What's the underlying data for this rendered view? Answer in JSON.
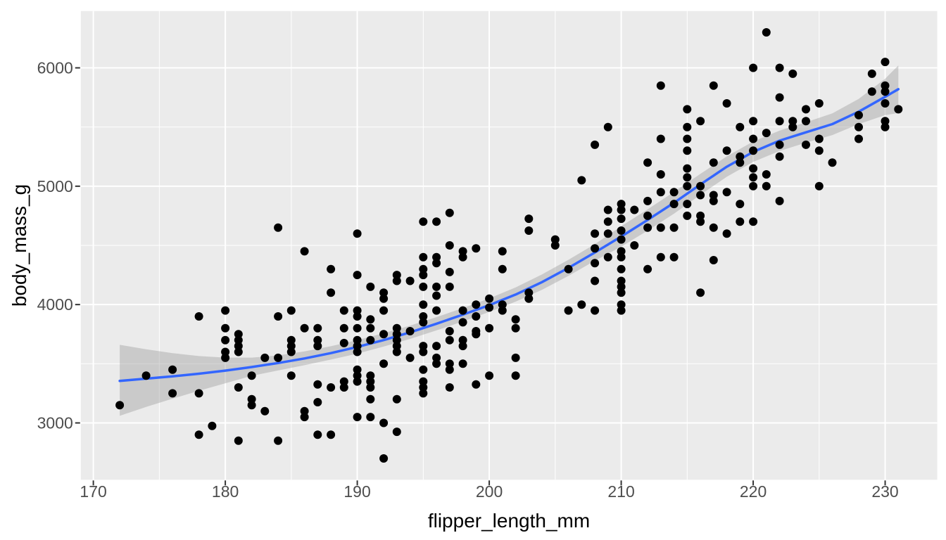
{
  "figure": {
    "kind": "ggplot2-style scatter plot with loess smooth",
    "background": "#FFFFFF"
  },
  "chart_data": {
    "type": "scatter",
    "title": "",
    "xlabel": "flipper_length_mm",
    "ylabel": "body_mass_g",
    "x_domain": [
      169.05,
      233.95
    ],
    "y_domain": [
      2520,
      6480
    ],
    "x_ticks": [
      170,
      180,
      190,
      200,
      210,
      220,
      230
    ],
    "x_minor_ticks": [
      175,
      185,
      195,
      205,
      215,
      225
    ],
    "y_ticks": [
      3000,
      4000,
      5000,
      6000
    ],
    "y_minor_ticks": [
      2500,
      3500,
      4500,
      5500,
      6500
    ],
    "grid": true,
    "legend": "none",
    "colors": {
      "panel_bg": "#EBEBEB",
      "grid": "#FFFFFF",
      "point": "#000000",
      "smooth_line": "#3366FF",
      "ci_fill": "#999999",
      "ci_opacity": 0.4,
      "tick_text": "#4D4D4D",
      "axis_title": "#000000",
      "tick_mark": "#333333"
    },
    "points": [
      [
        172,
        3150
      ],
      [
        174,
        3400
      ],
      [
        176,
        3450
      ],
      [
        176,
        3250
      ],
      [
        178,
        3900
      ],
      [
        178,
        3250
      ],
      [
        178,
        2900
      ],
      [
        179,
        2975
      ],
      [
        180,
        3950
      ],
      [
        180,
        3800
      ],
      [
        180,
        3700
      ],
      [
        180,
        3600
      ],
      [
        180,
        3550
      ],
      [
        181,
        3750
      ],
      [
        181,
        3700
      ],
      [
        181,
        3650
      ],
      [
        181,
        3600
      ],
      [
        181,
        3300
      ],
      [
        181,
        2850
      ],
      [
        182,
        3400
      ],
      [
        182,
        3200
      ],
      [
        182,
        3150
      ],
      [
        183,
        3550
      ],
      [
        183,
        3100
      ],
      [
        184,
        4650
      ],
      [
        184,
        3900
      ],
      [
        184,
        3550
      ],
      [
        184,
        2850
      ],
      [
        185,
        3950
      ],
      [
        185,
        3700
      ],
      [
        185,
        3650
      ],
      [
        185,
        3600
      ],
      [
        185,
        3400
      ],
      [
        186,
        4450
      ],
      [
        186,
        3800
      ],
      [
        186,
        3100
      ],
      [
        186,
        3050
      ],
      [
        187,
        3800
      ],
      [
        187,
        3700
      ],
      [
        187,
        3650
      ],
      [
        187,
        3325
      ],
      [
        187,
        3175
      ],
      [
        187,
        2900
      ],
      [
        188,
        4300
      ],
      [
        188,
        4100
      ],
      [
        188,
        3300
      ],
      [
        188,
        2900
      ],
      [
        189,
        3950
      ],
      [
        189,
        3800
      ],
      [
        189,
        3675
      ],
      [
        189,
        3350
      ],
      [
        189,
        3300
      ],
      [
        190,
        4600
      ],
      [
        190,
        4250
      ],
      [
        190,
        3950
      ],
      [
        190,
        3900
      ],
      [
        190,
        3800
      ],
      [
        190,
        3700
      ],
      [
        190,
        3650
      ],
      [
        190,
        3600
      ],
      [
        190,
        3450
      ],
      [
        190,
        3400
      ],
      [
        190,
        3350
      ],
      [
        190,
        3050
      ],
      [
        191,
        4150
      ],
      [
        191,
        3875
      ],
      [
        191,
        3800
      ],
      [
        191,
        3700
      ],
      [
        191,
        3400
      ],
      [
        191,
        3350
      ],
      [
        191,
        3300
      ],
      [
        191,
        3200
      ],
      [
        191,
        3050
      ],
      [
        192,
        4100
      ],
      [
        192,
        4050
      ],
      [
        192,
        3950
      ],
      [
        192,
        3750
      ],
      [
        192,
        3500
      ],
      [
        192,
        3000
      ],
      [
        192,
        2700
      ],
      [
        193,
        4250
      ],
      [
        193,
        4200
      ],
      [
        193,
        3800
      ],
      [
        193,
        3750
      ],
      [
        193,
        3700
      ],
      [
        193,
        3650
      ],
      [
        193,
        3600
      ],
      [
        193,
        3200
      ],
      [
        193,
        2925
      ],
      [
        194,
        4200
      ],
      [
        194,
        3775
      ],
      [
        194,
        3550
      ],
      [
        195,
        4700
      ],
      [
        195,
        4400
      ],
      [
        195,
        4300
      ],
      [
        195,
        4250
      ],
      [
        195,
        4150
      ],
      [
        195,
        4000
      ],
      [
        195,
        3900
      ],
      [
        195,
        3850
      ],
      [
        195,
        3650
      ],
      [
        195,
        3600
      ],
      [
        195,
        3450
      ],
      [
        195,
        3350
      ],
      [
        195,
        3300
      ],
      [
        195,
        3250
      ],
      [
        196,
        4700
      ],
      [
        196,
        4400
      ],
      [
        196,
        4350
      ],
      [
        196,
        4150
      ],
      [
        196,
        4075
      ],
      [
        196,
        3950
      ],
      [
        196,
        3650
      ],
      [
        196,
        3550
      ],
      [
        196,
        3500
      ],
      [
        197,
        4775
      ],
      [
        197,
        4500
      ],
      [
        197,
        4275
      ],
      [
        197,
        4150
      ],
      [
        197,
        3775
      ],
      [
        197,
        3700
      ],
      [
        197,
        3500
      ],
      [
        197,
        3450
      ],
      [
        197,
        3300
      ],
      [
        198,
        4450
      ],
      [
        198,
        4400
      ],
      [
        198,
        3950
      ],
      [
        198,
        3850
      ],
      [
        198,
        3700
      ],
      [
        198,
        3650
      ],
      [
        198,
        3500
      ],
      [
        199,
        4475
      ],
      [
        199,
        4000
      ],
      [
        199,
        3900
      ],
      [
        199,
        3775
      ],
      [
        199,
        3750
      ],
      [
        199,
        3325
      ],
      [
        200,
        4050
      ],
      [
        200,
        3975
      ],
      [
        200,
        3800
      ],
      [
        200,
        3400
      ],
      [
        201,
        4450
      ],
      [
        201,
        4300
      ],
      [
        201,
        4000
      ],
      [
        201,
        3950
      ],
      [
        202,
        3875
      ],
      [
        202,
        3800
      ],
      [
        202,
        3550
      ],
      [
        202,
        3400
      ],
      [
        203,
        4725
      ],
      [
        203,
        4625
      ],
      [
        203,
        4100
      ],
      [
        203,
        4050
      ],
      [
        205,
        4550
      ],
      [
        205,
        4500
      ],
      [
        206,
        4300
      ],
      [
        206,
        3950
      ],
      [
        207,
        5050
      ],
      [
        207,
        4000
      ],
      [
        208,
        5350
      ],
      [
        208,
        4600
      ],
      [
        208,
        4475
      ],
      [
        208,
        4350
      ],
      [
        208,
        4200
      ],
      [
        208,
        3950
      ],
      [
        209,
        5500
      ],
      [
        209,
        4800
      ],
      [
        209,
        4700
      ],
      [
        209,
        4600
      ],
      [
        209,
        4400
      ],
      [
        210,
        4850
      ],
      [
        210,
        4800
      ],
      [
        210,
        4725
      ],
      [
        210,
        4625
      ],
      [
        210,
        4550
      ],
      [
        210,
        4450
      ],
      [
        210,
        4400
      ],
      [
        210,
        4300
      ],
      [
        210,
        4200
      ],
      [
        210,
        4150
      ],
      [
        210,
        4100
      ],
      [
        210,
        4000
      ],
      [
        210,
        3950
      ],
      [
        211,
        4800
      ],
      [
        211,
        4500
      ],
      [
        212,
        5200
      ],
      [
        212,
        4875
      ],
      [
        212,
        4750
      ],
      [
        212,
        4650
      ],
      [
        212,
        4300
      ],
      [
        213,
        5850
      ],
      [
        213,
        5400
      ],
      [
        213,
        5100
      ],
      [
        213,
        4950
      ],
      [
        213,
        4650
      ],
      [
        213,
        4400
      ],
      [
        214,
        4950
      ],
      [
        214,
        4850
      ],
      [
        214,
        4650
      ],
      [
        214,
        4400
      ],
      [
        215,
        5650
      ],
      [
        215,
        5500
      ],
      [
        215,
        5400
      ],
      [
        215,
        5300
      ],
      [
        215,
        5150
      ],
      [
        215,
        5075
      ],
      [
        215,
        5000
      ],
      [
        215,
        4850
      ],
      [
        215,
        4750
      ],
      [
        216,
        5550
      ],
      [
        216,
        5000
      ],
      [
        216,
        4925
      ],
      [
        216,
        4750
      ],
      [
        216,
        4700
      ],
      [
        216,
        4100
      ],
      [
        217,
        5850
      ],
      [
        217,
        5200
      ],
      [
        217,
        4925
      ],
      [
        217,
        4875
      ],
      [
        217,
        4650
      ],
      [
        217,
        4375
      ],
      [
        218,
        5700
      ],
      [
        218,
        5300
      ],
      [
        218,
        4950
      ],
      [
        218,
        4600
      ],
      [
        219,
        5500
      ],
      [
        219,
        5250
      ],
      [
        219,
        5200
      ],
      [
        219,
        4850
      ],
      [
        219,
        4700
      ],
      [
        220,
        6000
      ],
      [
        220,
        5550
      ],
      [
        220,
        5400
      ],
      [
        220,
        5300
      ],
      [
        220,
        5150
      ],
      [
        220,
        5075
      ],
      [
        220,
        5000
      ],
      [
        220,
        4700
      ],
      [
        221,
        6300
      ],
      [
        221,
        5450
      ],
      [
        221,
        5100
      ],
      [
        221,
        5000
      ],
      [
        222,
        6000
      ],
      [
        222,
        5750
      ],
      [
        222,
        5550
      ],
      [
        222,
        5350
      ],
      [
        222,
        5250
      ],
      [
        222,
        4875
      ],
      [
        223,
        5950
      ],
      [
        223,
        5550
      ],
      [
        223,
        5500
      ],
      [
        224,
        5650
      ],
      [
        224,
        5550
      ],
      [
        224,
        5350
      ],
      [
        225,
        5700
      ],
      [
        225,
        5400
      ],
      [
        225,
        5300
      ],
      [
        225,
        5000
      ],
      [
        226,
        5200
      ],
      [
        228,
        5600
      ],
      [
        228,
        5500
      ],
      [
        228,
        5400
      ],
      [
        229,
        5950
      ],
      [
        229,
        5800
      ],
      [
        230,
        6050
      ],
      [
        230,
        5850
      ],
      [
        230,
        5800
      ],
      [
        230,
        5700
      ],
      [
        230,
        5550
      ],
      [
        230,
        5500
      ],
      [
        231,
        5650
      ]
    ],
    "smooth": {
      "x": [
        172,
        174,
        176,
        178,
        180,
        182,
        184,
        186,
        188,
        190,
        192,
        194,
        196,
        198,
        200,
        202,
        204,
        206,
        208,
        210,
        212,
        214,
        216,
        218,
        220,
        222,
        224,
        226,
        228,
        230,
        231
      ],
      "fit": [
        3355,
        3374,
        3394,
        3416,
        3442,
        3472,
        3506,
        3545,
        3590,
        3642,
        3700,
        3765,
        3838,
        3915,
        3995,
        4085,
        4190,
        4310,
        4440,
        4575,
        4715,
        4860,
        5015,
        5165,
        5290,
        5385,
        5455,
        5525,
        5630,
        5755,
        5820
      ],
      "lower": [
        3060,
        3135,
        3205,
        3272,
        3335,
        3398,
        3443,
        3488,
        3535,
        3585,
        3645,
        3710,
        3782,
        3858,
        3938,
        4025,
        4125,
        4242,
        4370,
        4490,
        4625,
        4768,
        4928,
        5080,
        5205,
        5298,
        5368,
        5432,
        5525,
        5600,
        5618
      ],
      "upper": [
        3660,
        3622,
        3590,
        3565,
        3552,
        3552,
        3570,
        3605,
        3648,
        3700,
        3758,
        3822,
        3894,
        3970,
        4052,
        4145,
        4255,
        4378,
        4510,
        4662,
        4805,
        4952,
        5105,
        5252,
        5378,
        5470,
        5540,
        5615,
        5738,
        5908,
        6020
      ]
    }
  }
}
